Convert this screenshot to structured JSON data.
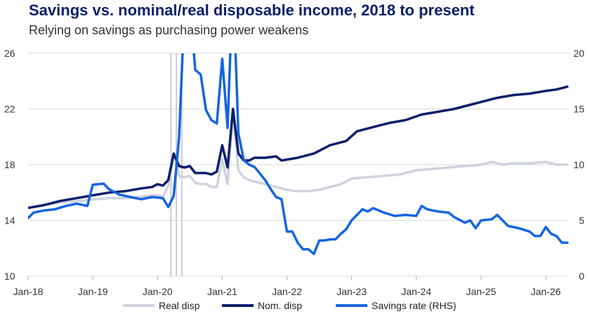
{
  "title": "Savings vs. nominal/real disposable income, 2018 to  present",
  "subtitle": "Relying on savings as purchasing power weakens",
  "chart_data": {
    "type": "line",
    "x_ticks": [
      "Jan-18",
      "Jan-19",
      "Jan-20",
      "Jan-21",
      "Jan-22",
      "Jan-23",
      "Jan-24",
      "Jan-25",
      "Jan-26"
    ],
    "x_range": [
      "2018-01",
      "2026-05"
    ],
    "ylim_left": [
      10,
      26
    ],
    "yticks_left": [
      "10",
      "14",
      "18",
      "22",
      "26"
    ],
    "ylim_right": [
      0,
      20
    ],
    "yticks_right": [
      "0",
      "5",
      "10",
      "15",
      "20"
    ],
    "grid": "horizontal",
    "legend_position": "bottom",
    "series": [
      {
        "name": "Real disp",
        "axis": "left",
        "color": "#cfd2df",
        "points": [
          [
            "2018-01",
            14.9
          ],
          [
            "2018-04",
            15.1
          ],
          [
            "2018-07",
            15.3
          ],
          [
            "2018-10",
            15.4
          ],
          [
            "2019-01",
            15.5
          ],
          [
            "2019-04",
            15.6
          ],
          [
            "2019-07",
            15.6
          ],
          [
            "2019-10",
            15.7
          ],
          [
            "2019-12",
            15.8
          ],
          [
            "2020-01",
            15.8
          ],
          [
            "2020-02",
            15.7
          ],
          [
            "2020-03",
            16.5
          ],
          [
            "2020-04",
            18.7
          ],
          [
            "2020-05",
            17.2
          ],
          [
            "2020-06",
            17.1
          ],
          [
            "2020-07",
            17.2
          ],
          [
            "2020-08",
            16.7
          ],
          [
            "2020-09",
            16.6
          ],
          [
            "2020-10",
            16.6
          ],
          [
            "2020-11",
            16.4
          ],
          [
            "2020-12",
            16.4
          ],
          [
            "2021-01",
            18.4
          ],
          [
            "2021-02",
            16.6
          ],
          [
            "2021-03",
            21.7
          ],
          [
            "2021-04",
            17.6
          ],
          [
            "2021-05",
            17.1
          ],
          [
            "2021-06",
            16.9
          ],
          [
            "2021-07",
            16.8
          ],
          [
            "2021-09",
            16.6
          ],
          [
            "2021-11",
            16.4
          ],
          [
            "2022-01",
            16.2
          ],
          [
            "2022-03",
            16.1
          ],
          [
            "2022-05",
            16.1
          ],
          [
            "2022-07",
            16.2
          ],
          [
            "2022-09",
            16.4
          ],
          [
            "2022-11",
            16.6
          ],
          [
            "2023-01",
            17.0
          ],
          [
            "2023-04",
            17.1
          ],
          [
            "2023-07",
            17.2
          ],
          [
            "2023-10",
            17.3
          ],
          [
            "2024-01",
            17.6
          ],
          [
            "2024-04",
            17.7
          ],
          [
            "2024-07",
            17.8
          ],
          [
            "2024-10",
            17.9
          ],
          [
            "2025-01",
            18.0
          ],
          [
            "2025-03",
            18.2
          ],
          [
            "2025-05",
            18.0
          ],
          [
            "2025-07",
            18.1
          ],
          [
            "2025-10",
            18.1
          ],
          [
            "2026-01",
            18.2
          ],
          [
            "2026-03",
            18.0
          ],
          [
            "2026-05",
            18.0
          ]
        ]
      },
      {
        "name": "Nom. disp",
        "axis": "left",
        "color": "#0b1f6b",
        "points": [
          [
            "2018-01",
            14.9
          ],
          [
            "2018-04",
            15.1
          ],
          [
            "2018-07",
            15.4
          ],
          [
            "2018-10",
            15.6
          ],
          [
            "2019-01",
            15.8
          ],
          [
            "2019-04",
            16.0
          ],
          [
            "2019-07",
            16.1
          ],
          [
            "2019-10",
            16.3
          ],
          [
            "2019-12",
            16.4
          ],
          [
            "2020-01",
            16.6
          ],
          [
            "2020-02",
            16.5
          ],
          [
            "2020-03",
            16.9
          ],
          [
            "2020-04",
            18.8
          ],
          [
            "2020-05",
            17.9
          ],
          [
            "2020-06",
            17.8
          ],
          [
            "2020-07",
            17.9
          ],
          [
            "2020-08",
            17.4
          ],
          [
            "2020-09",
            17.4
          ],
          [
            "2020-10",
            17.4
          ],
          [
            "2020-11",
            17.3
          ],
          [
            "2020-12",
            17.5
          ],
          [
            "2021-01",
            19.4
          ],
          [
            "2021-02",
            17.8
          ],
          [
            "2021-03",
            22.0
          ],
          [
            "2021-04",
            18.8
          ],
          [
            "2021-05",
            18.3
          ],
          [
            "2021-06",
            18.3
          ],
          [
            "2021-07",
            18.5
          ],
          [
            "2021-09",
            18.5
          ],
          [
            "2021-11",
            18.6
          ],
          [
            "2021-12",
            18.3
          ],
          [
            "2022-03",
            18.5
          ],
          [
            "2022-06",
            18.8
          ],
          [
            "2022-09",
            19.4
          ],
          [
            "2022-12",
            19.7
          ],
          [
            "2023-02",
            20.4
          ],
          [
            "2023-05",
            20.7
          ],
          [
            "2023-08",
            21.0
          ],
          [
            "2023-11",
            21.2
          ],
          [
            "2024-02",
            21.6
          ],
          [
            "2024-05",
            21.8
          ],
          [
            "2024-08",
            22.0
          ],
          [
            "2024-11",
            22.3
          ],
          [
            "2025-02",
            22.6
          ],
          [
            "2025-04",
            22.8
          ],
          [
            "2025-07",
            23.0
          ],
          [
            "2025-10",
            23.1
          ],
          [
            "2026-01",
            23.3
          ],
          [
            "2026-03",
            23.4
          ],
          [
            "2026-05",
            23.6
          ]
        ]
      },
      {
        "name": "Savings rate (RHS)",
        "axis": "right",
        "color": "#1565e0",
        "points": [
          [
            "2018-01",
            5.2
          ],
          [
            "2018-02",
            5.7
          ],
          [
            "2018-04",
            5.9
          ],
          [
            "2018-06",
            6.0
          ],
          [
            "2018-08",
            6.3
          ],
          [
            "2018-10",
            6.5
          ],
          [
            "2018-12",
            6.3
          ],
          [
            "2019-01",
            8.2
          ],
          [
            "2019-03",
            8.3
          ],
          [
            "2019-04",
            7.8
          ],
          [
            "2019-06",
            7.3
          ],
          [
            "2019-08",
            7.1
          ],
          [
            "2019-10",
            6.9
          ],
          [
            "2019-12",
            7.1
          ],
          [
            "2020-02",
            7.0
          ],
          [
            "2020-03",
            6.2
          ],
          [
            "2020-04",
            7.2
          ],
          [
            "2020-05",
            12.5
          ],
          [
            "2020-06",
            24.0
          ],
          [
            "2020-07",
            24.5
          ],
          [
            "2020-08",
            18.5
          ],
          [
            "2020-09",
            18.1
          ],
          [
            "2020-10",
            14.9
          ],
          [
            "2020-11",
            14.0
          ],
          [
            "2020-12",
            13.7
          ],
          [
            "2021-01",
            19.5
          ],
          [
            "2021-02",
            13.3
          ],
          [
            "2021-03",
            26.6
          ],
          [
            "2021-04",
            12.8
          ],
          [
            "2021-05",
            10.4
          ],
          [
            "2021-06",
            10.0
          ],
          [
            "2021-07",
            9.8
          ],
          [
            "2021-08",
            9.2
          ],
          [
            "2021-09",
            8.6
          ],
          [
            "2021-10",
            7.8
          ],
          [
            "2021-11",
            7.1
          ],
          [
            "2021-12",
            6.9
          ],
          [
            "2022-01",
            4.0
          ],
          [
            "2022-02",
            4.0
          ],
          [
            "2022-03",
            3.0
          ],
          [
            "2022-04",
            2.4
          ],
          [
            "2022-05",
            2.4
          ],
          [
            "2022-06",
            2.0
          ],
          [
            "2022-07",
            3.2
          ],
          [
            "2022-08",
            3.2
          ],
          [
            "2022-09",
            3.3
          ],
          [
            "2022-10",
            3.3
          ],
          [
            "2022-11",
            3.8
          ],
          [
            "2022-12",
            4.2
          ],
          [
            "2023-01",
            5.0
          ],
          [
            "2023-03",
            6.0
          ],
          [
            "2023-04",
            5.8
          ],
          [
            "2023-05",
            6.1
          ],
          [
            "2023-07",
            5.7
          ],
          [
            "2023-09",
            5.4
          ],
          [
            "2023-11",
            5.5
          ],
          [
            "2024-01",
            5.4
          ],
          [
            "2024-02",
            6.3
          ],
          [
            "2024-03",
            6.0
          ],
          [
            "2024-05",
            5.8
          ],
          [
            "2024-07",
            5.7
          ],
          [
            "2024-08",
            5.3
          ],
          [
            "2024-10",
            4.8
          ],
          [
            "2024-11",
            5.0
          ],
          [
            "2024-12",
            4.3
          ],
          [
            "2025-01",
            5.0
          ],
          [
            "2025-03",
            5.1
          ],
          [
            "2025-04",
            5.5
          ],
          [
            "2025-06",
            4.5
          ],
          [
            "2025-08",
            4.3
          ],
          [
            "2025-10",
            4.0
          ],
          [
            "2025-11",
            3.6
          ],
          [
            "2025-12",
            3.6
          ],
          [
            "2026-01",
            4.4
          ],
          [
            "2026-02",
            3.8
          ],
          [
            "2026-03",
            3.6
          ],
          [
            "2026-04",
            3.0
          ],
          [
            "2026-05",
            3.0
          ]
        ]
      }
    ],
    "annotations": [
      "vertical markers near Jan-20"
    ]
  }
}
